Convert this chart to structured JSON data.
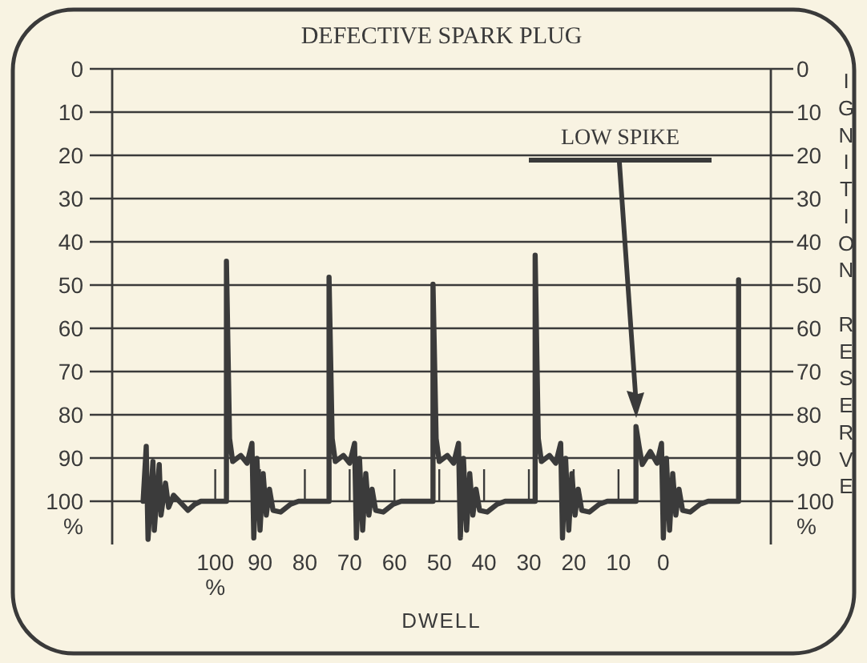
{
  "chart_data": {
    "type": "line",
    "title": "DEFECTIVE SPARK PLUG",
    "xlabel": "DWELL",
    "y2label": "IGNITION RESERVE",
    "xlim": [
      123,
      -24
    ],
    "ylim": [
      110,
      0
    ],
    "y2lim": [
      110,
      0
    ],
    "xticks": [
      {
        "value": 100,
        "label": "100\n%"
      },
      90,
      80,
      70,
      60,
      50,
      40,
      30,
      20,
      10,
      0
    ],
    "yticks": [
      0,
      10,
      20,
      30,
      40,
      50,
      60,
      70,
      80,
      90,
      {
        "value": 100,
        "label": "100\n%"
      }
    ],
    "y2ticks": [
      0,
      10,
      20,
      30,
      40,
      50,
      60,
      70,
      80,
      90,
      {
        "value": 100,
        "label": "100\n%"
      }
    ],
    "grid": "y",
    "marker": "none",
    "line_style": "solid",
    "annotations": [
      "LOW SPIKE"
    ],
    "series": [
      {
        "color": "#3b3b3b",
        "x": [
          116.1,
          115.4,
          115.0,
          113.9,
          113.6,
          112.5,
          112.1,
          111.1,
          110.4,
          109.3,
          106.1,
          104.6,
          103.2,
          97.5,
          97.5,
          96.8,
          96.1,
          94.3,
          92.9,
          91.8,
          91.4,
          90.7,
          90.0,
          89.3,
          88.6,
          87.9,
          87.1,
          85.4,
          83.2,
          81.4,
          74.6,
          74.6,
          73.9,
          73.2,
          71.4,
          70.0,
          68.9,
          68.5,
          67.8,
          67.1,
          66.4,
          65.7,
          65.0,
          64.2,
          62.5,
          60.3,
          58.5,
          51.4,
          51.4,
          50.7,
          50.0,
          48.2,
          46.8,
          45.7,
          45.3,
          44.6,
          43.9,
          43.2,
          42.5,
          41.8,
          41.0,
          39.3,
          37.1,
          35.3,
          28.6,
          28.6,
          27.9,
          27.2,
          25.4,
          24.0,
          22.9,
          22.5,
          21.8,
          21.1,
          20.4,
          19.7,
          19.0,
          18.2,
          16.5,
          14.3,
          12.5,
          6.1,
          6.1,
          5.4,
          4.7,
          2.9,
          1.4,
          0.4,
          0.0,
          -0.7,
          -1.4,
          -2.1,
          -2.8,
          -3.5,
          -4.3,
          -6.0,
          -8.2,
          -10.0,
          -16.8,
          -16.8
        ],
        "values": [
          100,
          87.3,
          108.8,
          90.8,
          106.7,
          91.5,
          103.2,
          95.8,
          101.4,
          98.6,
          102.1,
          100.7,
          100,
          100,
          44.5,
          85.5,
          90.8,
          89.4,
          91.2,
          86.6,
          108.5,
          90.1,
          106.7,
          93.6,
          103.2,
          97.2,
          102.1,
          102.5,
          100.7,
          100,
          100,
          48.2,
          85.5,
          90.8,
          89.4,
          91.2,
          86.6,
          108.5,
          90.1,
          106.7,
          93.6,
          103.2,
          97.2,
          102.1,
          102.5,
          100.7,
          100,
          100,
          49.8,
          85.5,
          90.8,
          89.4,
          91.2,
          86.6,
          108.5,
          90.1,
          106.7,
          93.6,
          103.2,
          97.2,
          102.1,
          102.5,
          100.7,
          100,
          100,
          43.1,
          85.5,
          90.8,
          89.4,
          91.2,
          86.6,
          108.5,
          90.1,
          106.7,
          93.6,
          103.2,
          97.2,
          102.1,
          102.5,
          100.7,
          100,
          100,
          82.7,
          87.3,
          91.5,
          88.5,
          91.2,
          86.6,
          108.5,
          90.1,
          106.7,
          93.6,
          103.2,
          97.2,
          102.1,
          102.5,
          100.7,
          100,
          100,
          48.8
        ]
      }
    ]
  }
}
